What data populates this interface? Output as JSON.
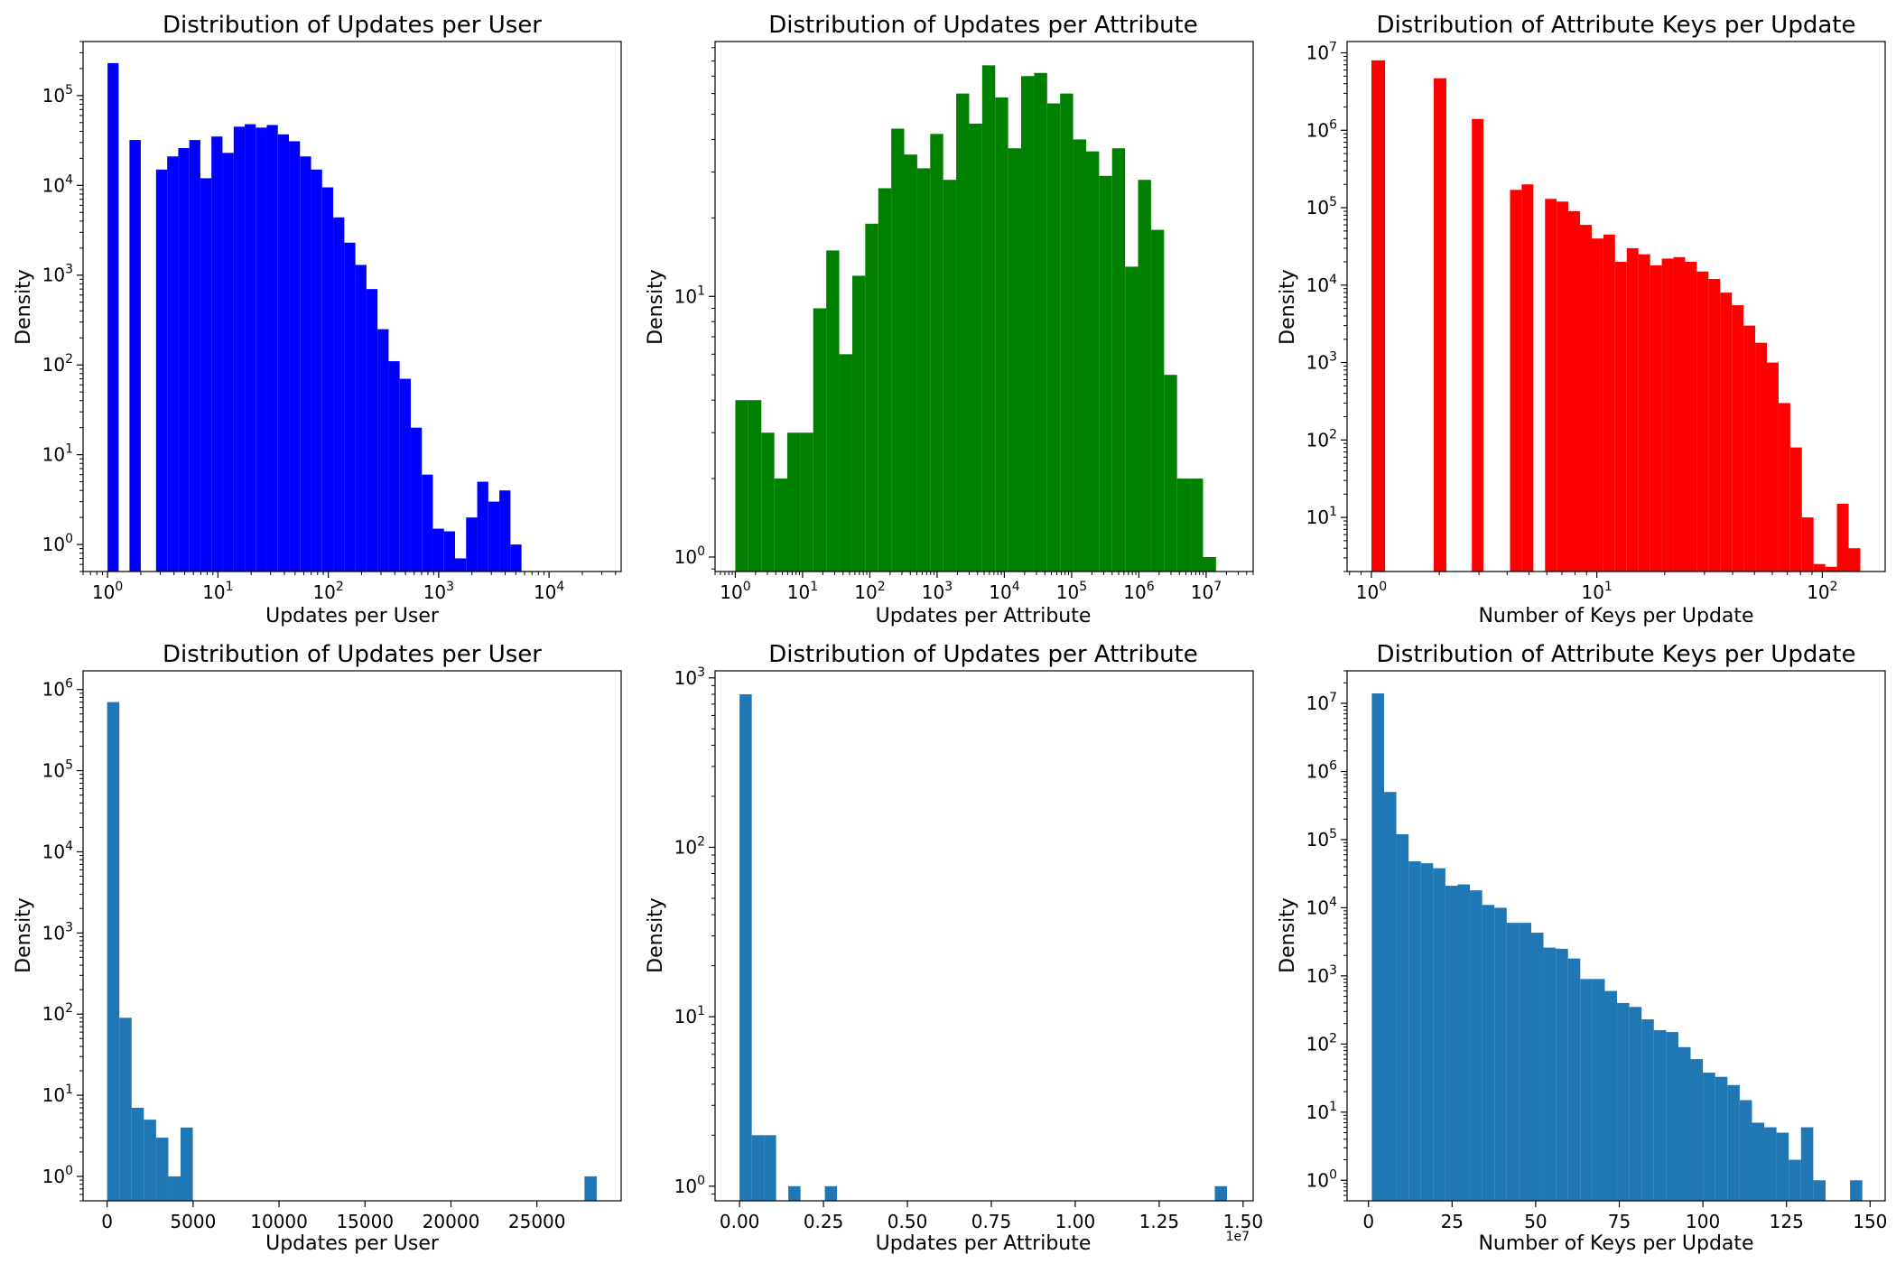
{
  "chart_data": [
    {
      "type": "bar",
      "title": "Distribution of Updates per User",
      "xlabel": "Updates per User",
      "ylabel": "Density",
      "xscale": "log",
      "yscale": "log",
      "xlim": [
        0.6,
        45000
      ],
      "ylim": [
        0.5,
        400000
      ],
      "color": "#0000ff",
      "x_ticks": [
        {
          "base": "10",
          "exp": "0",
          "value": 1
        },
        {
          "base": "10",
          "exp": "1",
          "value": 10
        },
        {
          "base": "10",
          "exp": "2",
          "value": 100
        },
        {
          "base": "10",
          "exp": "3",
          "value": 1000
        },
        {
          "base": "10",
          "exp": "4",
          "value": 10000
        }
      ],
      "y_ticks": [
        {
          "base": "10",
          "exp": "0",
          "value": 1
        },
        {
          "base": "10",
          "exp": "1",
          "value": 10
        },
        {
          "base": "10",
          "exp": "2",
          "value": 100
        },
        {
          "base": "10",
          "exp": "3",
          "value": 1000
        },
        {
          "base": "10",
          "exp": "4",
          "value": 10000
        },
        {
          "base": "10",
          "exp": "5",
          "value": 100000
        }
      ],
      "bins": [
        [
          1.0,
          1.26,
          230000
        ],
        [
          1.58,
          2.0,
          32000
        ],
        [
          2.75,
          3.47,
          15000
        ],
        [
          3.47,
          4.37,
          21000
        ],
        [
          4.37,
          5.5,
          26000
        ],
        [
          5.5,
          6.93,
          32000
        ],
        [
          6.93,
          8.73,
          12000
        ],
        [
          8.73,
          11.0,
          35000
        ],
        [
          11.0,
          13.9,
          23000
        ],
        [
          13.9,
          17.5,
          45000
        ],
        [
          17.5,
          22.0,
          48000
        ],
        [
          22.0,
          27.7,
          44000
        ],
        [
          27.7,
          34.9,
          47000
        ],
        [
          34.9,
          44.0,
          37000
        ],
        [
          44.0,
          55.4,
          31000
        ],
        [
          55.4,
          69.8,
          21000
        ],
        [
          69.8,
          87.9,
          15000
        ],
        [
          87.9,
          110.8,
          9500
        ],
        [
          110.8,
          139.6,
          4400
        ],
        [
          139.6,
          175.9,
          2300
        ],
        [
          175.9,
          221.6,
          1300
        ],
        [
          221.6,
          279.2,
          700
        ],
        [
          279.2,
          351.8,
          250
        ],
        [
          351.8,
          443.2,
          110
        ],
        [
          443.2,
          558.4,
          70
        ],
        [
          558.4,
          703.5,
          20
        ],
        [
          703.5,
          886.3,
          6
        ],
        [
          886.3,
          1116.7,
          1.5
        ],
        [
          1116.7,
          1406.9,
          1.4
        ],
        [
          1406.9,
          1772.6,
          0.7
        ],
        [
          1772.6,
          2233.3,
          2
        ],
        [
          2233.3,
          2813.7,
          5
        ],
        [
          2813.7,
          3545.0,
          3
        ],
        [
          3545.0,
          4466.4,
          4
        ],
        [
          4466.4,
          5627.2,
          1
        ]
      ]
    },
    {
      "type": "bar",
      "title": "Distribution of Updates per Attribute",
      "xlabel": "Updates per Attribute",
      "ylabel": "Density",
      "xscale": "log",
      "yscale": "log",
      "xlim": [
        0.5,
        50000000
      ],
      "ylim": [
        0.88,
        95
      ],
      "color": "#008000",
      "x_ticks": [
        {
          "base": "10",
          "exp": "0",
          "value": 1
        },
        {
          "base": "10",
          "exp": "1",
          "value": 10
        },
        {
          "base": "10",
          "exp": "2",
          "value": 100
        },
        {
          "base": "10",
          "exp": "3",
          "value": 1000
        },
        {
          "base": "10",
          "exp": "4",
          "value": 10000
        },
        {
          "base": "10",
          "exp": "5",
          "value": 100000
        },
        {
          "base": "10",
          "exp": "6",
          "value": 1000000
        },
        {
          "base": "10",
          "exp": "7",
          "value": 10000000
        }
      ],
      "y_ticks": [
        {
          "base": "10",
          "exp": "0",
          "value": 1
        },
        {
          "base": "10",
          "exp": "1",
          "value": 10
        }
      ],
      "bins": [
        [
          1.0,
          1.56,
          4
        ],
        [
          1.56,
          2.44,
          4
        ],
        [
          2.44,
          3.8,
          3
        ],
        [
          3.8,
          5.93,
          2
        ],
        [
          5.93,
          9.25,
          3
        ],
        [
          9.25,
          14.4,
          3
        ],
        [
          14.4,
          22.5,
          9
        ],
        [
          22.5,
          35.1,
          15
        ],
        [
          35.1,
          54.8,
          6
        ],
        [
          54.8,
          85.5,
          12
        ],
        [
          85.5,
          133.4,
          19
        ],
        [
          133.4,
          208.1,
          26
        ],
        [
          208.1,
          324.6,
          44
        ],
        [
          324.6,
          506.4,
          35
        ],
        [
          506.4,
          790.0,
          31
        ],
        [
          790.0,
          1232.4,
          42
        ],
        [
          1232.4,
          1922.6,
          28
        ],
        [
          1922.6,
          2999.4,
          60
        ],
        [
          2999.4,
          4679.3,
          46
        ],
        [
          4679.3,
          7300.0,
          77
        ],
        [
          7300.0,
          11388.5,
          58
        ],
        [
          11388.5,
          17766.8,
          37
        ],
        [
          17766.8,
          27717.3,
          70
        ],
        [
          27717.3,
          43240.5,
          72
        ],
        [
          43240.5,
          67457.4,
          55
        ],
        [
          67457.4,
          105237.2,
          60
        ],
        [
          105237.2,
          164175.8,
          40
        ],
        [
          164175.8,
          256123.2,
          36
        ],
        [
          256123.2,
          399567.0,
          29
        ],
        [
          399567.0,
          623345.0,
          37
        ],
        [
          623345.0,
          972450.0,
          13
        ],
        [
          972450.0,
          1517076.0,
          28
        ],
        [
          1517076.0,
          2366720.0,
          18
        ],
        [
          2366720.0,
          3692200.0,
          5
        ],
        [
          3692200.0,
          5760000.0,
          2
        ],
        [
          5760000.0,
          8985000.0,
          2
        ],
        [
          8985000.0,
          14017000.0,
          1
        ]
      ]
    },
    {
      "type": "bar",
      "title": "Distribution of Attribute Keys per Update",
      "xlabel": "Number of Keys per Update",
      "ylabel": "Density",
      "xscale": "log",
      "yscale": "log",
      "xlim": [
        0.78,
        190
      ],
      "ylim": [
        2,
        14000000
      ],
      "color": "#ff0000",
      "x_ticks": [
        {
          "base": "10",
          "exp": "0",
          "value": 1
        },
        {
          "base": "10",
          "exp": "1",
          "value": 10
        },
        {
          "base": "10",
          "exp": "2",
          "value": 100
        }
      ],
      "y_ticks": [
        {
          "base": "10",
          "exp": "1",
          "value": 10
        },
        {
          "base": "10",
          "exp": "2",
          "value": 100
        },
        {
          "base": "10",
          "exp": "3",
          "value": 1000
        },
        {
          "base": "10",
          "exp": "4",
          "value": 10000
        },
        {
          "base": "10",
          "exp": "5",
          "value": 100000
        },
        {
          "base": "10",
          "exp": "6",
          "value": 1000000
        },
        {
          "base": "10",
          "exp": "7",
          "value": 10000000
        }
      ],
      "bins": [
        [
          1.0,
          1.15,
          8000000
        ],
        [
          1.89,
          2.15,
          4700000
        ],
        [
          2.79,
          3.14,
          1400000
        ],
        [
          4.12,
          4.64,
          170000
        ],
        [
          4.64,
          5.23,
          200000
        ],
        [
          5.89,
          6.63,
          130000
        ],
        [
          6.63,
          7.47,
          120000
        ],
        [
          7.47,
          8.42,
          90000
        ],
        [
          8.42,
          9.49,
          60000
        ],
        [
          9.49,
          10.69,
          40000
        ],
        [
          10.69,
          12.04,
          45000
        ],
        [
          12.04,
          13.57,
          20000
        ],
        [
          13.57,
          15.29,
          30000
        ],
        [
          15.29,
          17.23,
          25000
        ],
        [
          17.23,
          19.41,
          18000
        ],
        [
          19.41,
          21.87,
          22000
        ],
        [
          21.87,
          24.64,
          23000
        ],
        [
          24.64,
          27.76,
          20000
        ],
        [
          27.76,
          31.28,
          15000
        ],
        [
          31.28,
          35.24,
          12000
        ],
        [
          35.24,
          39.7,
          8000
        ],
        [
          39.7,
          44.73,
          5500
        ],
        [
          44.73,
          50.4,
          3000
        ],
        [
          50.4,
          56.78,
          1800
        ],
        [
          56.78,
          63.97,
          1000
        ],
        [
          63.97,
          72.07,
          300
        ],
        [
          72.07,
          81.19,
          80
        ],
        [
          81.19,
          91.47,
          10
        ],
        [
          91.47,
          103.05,
          2.5
        ],
        [
          103.05,
          116.1,
          2.3
        ],
        [
          116.1,
          130.8,
          15
        ],
        [
          130.8,
          147.4,
          4
        ]
      ]
    },
    {
      "type": "bar",
      "title": "Distribution of Updates per User",
      "xlabel": "Updates per User",
      "ylabel": "Density",
      "xscale": "linear",
      "yscale": "log",
      "xlim": [
        -1400,
        29900
      ],
      "ylim": [
        0.5,
        1700000
      ],
      "color": "#1f77b4",
      "x_ticks": [
        {
          "label": "0",
          "value": 0
        },
        {
          "label": "5000",
          "value": 5000
        },
        {
          "label": "10000",
          "value": 10000
        },
        {
          "label": "15000",
          "value": 15000
        },
        {
          "label": "20000",
          "value": 20000
        },
        {
          "label": "25000",
          "value": 25000
        }
      ],
      "y_ticks": [
        {
          "base": "10",
          "exp": "0",
          "value": 1
        },
        {
          "base": "10",
          "exp": "1",
          "value": 10
        },
        {
          "base": "10",
          "exp": "2",
          "value": 100
        },
        {
          "base": "10",
          "exp": "3",
          "value": 1000
        },
        {
          "base": "10",
          "exp": "4",
          "value": 10000
        },
        {
          "base": "10",
          "exp": "5",
          "value": 100000
        },
        {
          "base": "10",
          "exp": "6",
          "value": 1000000
        }
      ],
      "bins": [
        [
          0,
          712,
          700000
        ],
        [
          712,
          1424,
          90
        ],
        [
          1424,
          2136,
          7
        ],
        [
          2136,
          2848,
          5
        ],
        [
          2848,
          3560,
          3
        ],
        [
          3560,
          4272,
          1
        ],
        [
          4272,
          4984,
          4
        ],
        [
          27768,
          28480,
          1
        ]
      ]
    },
    {
      "type": "bar",
      "title": "Distribution of Updates per Attribute",
      "xlabel": "Updates per Attribute",
      "ylabel": "Density",
      "xscale": "linear",
      "yscale": "log",
      "xlim": [
        -730000,
        15300000
      ],
      "ylim": [
        0.82,
        1100
      ],
      "offset_text": "1e7",
      "color": "#1f77b4",
      "x_ticks": [
        {
          "label": "0.00",
          "value": 0
        },
        {
          "label": "0.25",
          "value": 2500000
        },
        {
          "label": "0.50",
          "value": 5000000
        },
        {
          "label": "0.75",
          "value": 7500000
        },
        {
          "label": "1.00",
          "value": 10000000
        },
        {
          "label": "1.25",
          "value": 12500000
        },
        {
          "label": "1.50",
          "value": 15000000
        }
      ],
      "y_ticks": [
        {
          "base": "10",
          "exp": "0",
          "value": 1
        },
        {
          "base": "10",
          "exp": "1",
          "value": 10
        },
        {
          "base": "10",
          "exp": "2",
          "value": 100
        },
        {
          "base": "10",
          "exp": "3",
          "value": 1000
        }
      ],
      "bins": [
        [
          0,
          363000,
          800
        ],
        [
          363000,
          726000,
          2
        ],
        [
          726000,
          1089000,
          2
        ],
        [
          1452000,
          1815000,
          1
        ],
        [
          2541000,
          2904000,
          1
        ],
        [
          14157000,
          14520000,
          1
        ]
      ]
    },
    {
      "type": "bar",
      "title": "Distribution of Attribute Keys per Update",
      "xlabel": "Number of Keys per Update",
      "ylabel": "Density",
      "xscale": "linear",
      "yscale": "log",
      "xlim": [
        -6.4,
        154.5
      ],
      "ylim": [
        0.5,
        30000000
      ],
      "color": "#1f77b4",
      "x_ticks": [
        {
          "label": "0",
          "value": 0
        },
        {
          "label": "25",
          "value": 25
        },
        {
          "label": "50",
          "value": 50
        },
        {
          "label": "75",
          "value": 75
        },
        {
          "label": "100",
          "value": 100
        },
        {
          "label": "125",
          "value": 125
        },
        {
          "label": "150",
          "value": 150
        }
      ],
      "y_ticks": [
        {
          "base": "10",
          "exp": "0",
          "value": 1
        },
        {
          "base": "10",
          "exp": "1",
          "value": 10
        },
        {
          "base": "10",
          "exp": "2",
          "value": 100
        },
        {
          "base": "10",
          "exp": "3",
          "value": 1000
        },
        {
          "base": "10",
          "exp": "4",
          "value": 10000
        },
        {
          "base": "10",
          "exp": "5",
          "value": 100000
        },
        {
          "base": "10",
          "exp": "6",
          "value": 1000000
        },
        {
          "base": "10",
          "exp": "7",
          "value": 10000000
        }
      ],
      "bins": [
        [
          1.0,
          4.67,
          14000000
        ],
        [
          4.67,
          8.33,
          500000
        ],
        [
          8.33,
          12.0,
          120000
        ],
        [
          12.0,
          15.67,
          48000
        ],
        [
          15.67,
          19.33,
          45000
        ],
        [
          19.33,
          23.0,
          38000
        ],
        [
          23.0,
          26.67,
          21000
        ],
        [
          26.67,
          30.33,
          22000
        ],
        [
          30.33,
          34.0,
          18000
        ],
        [
          34.0,
          37.67,
          11000
        ],
        [
          37.67,
          41.33,
          10000
        ],
        [
          41.33,
          45.0,
          6000
        ],
        [
          45.0,
          48.67,
          6000
        ],
        [
          48.67,
          52.33,
          4300
        ],
        [
          52.33,
          56.0,
          2600
        ],
        [
          56.0,
          59.67,
          2500
        ],
        [
          59.67,
          63.33,
          1800
        ],
        [
          63.33,
          67.0,
          900
        ],
        [
          67.0,
          70.67,
          900
        ],
        [
          70.67,
          74.33,
          600
        ],
        [
          74.33,
          78.0,
          400
        ],
        [
          78.0,
          81.67,
          350
        ],
        [
          81.67,
          85.33,
          230
        ],
        [
          85.33,
          89.0,
          160
        ],
        [
          89.0,
          92.67,
          150
        ],
        [
          92.67,
          96.33,
          90
        ],
        [
          96.33,
          100.0,
          60
        ],
        [
          100.0,
          103.67,
          38
        ],
        [
          103.67,
          107.33,
          33
        ],
        [
          107.33,
          111.0,
          25
        ],
        [
          111.0,
          114.67,
          15
        ],
        [
          114.67,
          118.33,
          7
        ],
        [
          118.33,
          122.0,
          6
        ],
        [
          122.0,
          125.67,
          5
        ],
        [
          125.67,
          129.33,
          2
        ],
        [
          129.33,
          133.0,
          6
        ],
        [
          133.0,
          136.67,
          1
        ],
        [
          144.0,
          147.67,
          1
        ]
      ]
    }
  ]
}
